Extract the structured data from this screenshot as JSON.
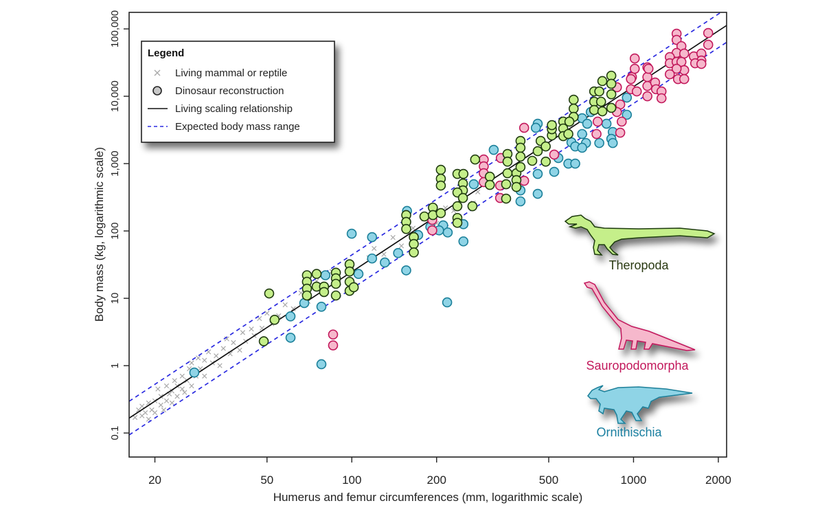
{
  "chart_data": {
    "type": "scatter",
    "xlabel": "Humerus and femur circumferences (mm, logarithmic scale)",
    "ylabel": "Body mass (kg, logarithmic scale)",
    "x_scale": "log",
    "y_scale": "log",
    "xlim": [
      16.2,
      2140
    ],
    "ylim": [
      0.044,
      176000
    ],
    "grid": false,
    "x_ticks": [
      20,
      50,
      100,
      200,
      500,
      1000,
      2000
    ],
    "x_tick_labels": [
      "20",
      "50",
      "100",
      "200",
      "500",
      "1000",
      "2000"
    ],
    "y_ticks": [
      0.1,
      1,
      10,
      100,
      1000,
      10000,
      100000
    ],
    "y_tick_labels": [
      "0.1",
      "1",
      "10",
      "100",
      "1,000",
      "10,000",
      "100,000"
    ],
    "legend": {
      "position": "top-left",
      "title": "Legend",
      "items": [
        {
          "label": "Living mammal or reptile",
          "marker": "cross"
        },
        {
          "label": "Dinosaur reconstruction",
          "marker": "circle"
        },
        {
          "label": "Living scaling relationship",
          "marker": "solid-line"
        },
        {
          "label": "Expected body mass range",
          "marker": "dashed-line"
        }
      ]
    },
    "regression": {
      "slope": 2.749,
      "intercept": -4.104,
      "band_log10": 0.25,
      "line_color": "#111111",
      "band_color": "#2a2ae0"
    },
    "living": {
      "color": "#a8a8a8",
      "points": [
        [
          17,
          0.17
        ],
        [
          17.5,
          0.22
        ],
        [
          18,
          0.18
        ],
        [
          18,
          0.25
        ],
        [
          18.5,
          0.2
        ],
        [
          19,
          0.16
        ],
        [
          19,
          0.28
        ],
        [
          19.5,
          0.22
        ],
        [
          20,
          0.3
        ],
        [
          20,
          0.2
        ],
        [
          20.5,
          0.45
        ],
        [
          21,
          0.26
        ],
        [
          21,
          0.35
        ],
        [
          21.5,
          0.22
        ],
        [
          22,
          0.3
        ],
        [
          22,
          0.5
        ],
        [
          22.5,
          0.38
        ],
        [
          23,
          0.28
        ],
        [
          23,
          0.42
        ],
        [
          23.5,
          0.6
        ],
        [
          24,
          0.35
        ],
        [
          24,
          0.5
        ],
        [
          25,
          0.45
        ],
        [
          25,
          0.7
        ],
        [
          25.5,
          0.4
        ],
        [
          26,
          0.6
        ],
        [
          26.5,
          0.9
        ],
        [
          27,
          0.5
        ],
        [
          27,
          1.1
        ],
        [
          28,
          0.7
        ],
        [
          28.5,
          1.3
        ],
        [
          29,
          0.9
        ],
        [
          30,
          1.2
        ],
        [
          30,
          0.7
        ],
        [
          31,
          1.6
        ],
        [
          32,
          1.1
        ],
        [
          33,
          1.4
        ],
        [
          34,
          1.0
        ],
        [
          35,
          1.8
        ],
        [
          36,
          2.5
        ],
        [
          37,
          1.5
        ],
        [
          38,
          2.2
        ],
        [
          40,
          1.7
        ],
        [
          41,
          3.1
        ],
        [
          42,
          2.3
        ],
        [
          44,
          3.5
        ],
        [
          45,
          2.8
        ],
        [
          47,
          5.0
        ],
        [
          48,
          3.6
        ],
        [
          50,
          6.0
        ],
        [
          52,
          4.2
        ],
        [
          55,
          5.5
        ],
        [
          58,
          8.0
        ],
        [
          62,
          7.0
        ],
        [
          66,
          12
        ],
        [
          70,
          9
        ],
        [
          75,
          18
        ],
        [
          80,
          13
        ],
        [
          85,
          25
        ],
        [
          90,
          17
        ],
        [
          100,
          30
        ],
        [
          105,
          22
        ],
        [
          115,
          40
        ],
        [
          120,
          55
        ],
        [
          130,
          45
        ],
        [
          140,
          80
        ],
        [
          150,
          60
        ],
        [
          165,
          110
        ],
        [
          180,
          150
        ],
        [
          200,
          130
        ],
        [
          215,
          220
        ],
        [
          230,
          200
        ],
        [
          250,
          300
        ],
        [
          270,
          260
        ],
        [
          280,
          380
        ]
      ]
    },
    "groups": [
      {
        "name": "Ornithischia",
        "fill": "#8fd4e6",
        "stroke": "#1a7f99",
        "label_color": "#1a7fa0",
        "points": [
          [
            27.6,
            0.79
          ],
          [
            60.6,
            5.4
          ],
          [
            60.6,
            2.6
          ],
          [
            67.8,
            8.5
          ],
          [
            78,
            7.5
          ],
          [
            78,
            1.05
          ],
          [
            80.6,
            22
          ],
          [
            105.6,
            23
          ],
          [
            99.9,
            91
          ],
          [
            118,
            81
          ],
          [
            118,
            39
          ],
          [
            131,
            34
          ],
          [
            146,
            47
          ],
          [
            156,
            26
          ],
          [
            157,
            198
          ],
          [
            172,
            87
          ],
          [
            218,
            8.7
          ],
          [
            190,
            115
          ],
          [
            211,
            121
          ],
          [
            219,
            95
          ],
          [
            204,
            102
          ],
          [
            249,
            126
          ],
          [
            249,
            70
          ],
          [
            271,
            494
          ],
          [
            319,
            1600
          ],
          [
            397,
            400
          ],
          [
            397,
            275
          ],
          [
            457,
            3910
          ],
          [
            450,
            3400
          ],
          [
            457,
            703
          ],
          [
            457,
            356
          ],
          [
            523,
            755
          ],
          [
            541,
            1210
          ],
          [
            587,
            1000
          ],
          [
            621,
            1000
          ],
          [
            602,
            2070
          ],
          [
            621,
            1800
          ],
          [
            657,
            4720
          ],
          [
            657,
            2750
          ],
          [
            678,
            2020
          ],
          [
            657,
            1720
          ],
          [
            685,
            3910
          ],
          [
            705,
            5830
          ],
          [
            756,
            2020
          ],
          [
            802,
            3910
          ],
          [
            844,
            2950
          ],
          [
            834,
            2330
          ],
          [
            844,
            2020
          ],
          [
            947,
            9550
          ],
          [
            947,
            5310
          ]
        ]
      },
      {
        "name": "Sauropodomorpha",
        "fill": "#f6b8cc",
        "stroke": "#c2185b",
        "label_color": "#c2185b",
        "points": [
          [
            85.8,
            2.9
          ],
          [
            85.8,
            2.0
          ],
          [
            193,
            146
          ],
          [
            193,
            102
          ],
          [
            294,
            1150
          ],
          [
            294,
            911
          ],
          [
            294,
            720
          ],
          [
            294,
            531
          ],
          [
            338,
            1210
          ],
          [
            336,
            472
          ],
          [
            336,
            309
          ],
          [
            409,
            556
          ],
          [
            409,
            3400
          ],
          [
            523,
            1360
          ],
          [
            746,
            4200
          ],
          [
            739,
            2750
          ],
          [
            873,
            13600
          ],
          [
            897,
            7550
          ],
          [
            873,
            5830
          ],
          [
            908,
            4200
          ],
          [
            897,
            2880
          ],
          [
            987,
            19300
          ],
          [
            979,
            12700
          ],
          [
            1010,
            25600
          ],
          [
            1010,
            36400
          ],
          [
            1120,
            26900
          ],
          [
            1120,
            19300
          ],
          [
            1120,
            14200
          ],
          [
            1120,
            10000
          ],
          [
            1193,
            16000
          ],
          [
            1202,
            12700
          ],
          [
            1257,
            11800
          ],
          [
            1257,
            9330
          ],
          [
            979,
            18000
          ],
          [
            1027,
            11800
          ],
          [
            1130,
            25600
          ],
          [
            1422,
            84900
          ],
          [
            1422,
            68700
          ],
          [
            1479,
            55500
          ],
          [
            1422,
            44000
          ],
          [
            1513,
            43000
          ],
          [
            1345,
            38200
          ],
          [
            1345,
            30900
          ],
          [
            1422,
            32400
          ],
          [
            1479,
            32400
          ],
          [
            1513,
            24400
          ],
          [
            1422,
            25600
          ],
          [
            1345,
            21200
          ],
          [
            1438,
            18000
          ],
          [
            1513,
            18000
          ],
          [
            1637,
            39100
          ],
          [
            1741,
            43000
          ],
          [
            1741,
            33900
          ],
          [
            1655,
            30900
          ],
          [
            1741,
            30200
          ],
          [
            1841,
            86900
          ],
          [
            1841,
            58200
          ]
        ]
      },
      {
        "name": "Theropoda",
        "fill": "#c5ef8a",
        "stroke": "#1f3a10",
        "label_color": "#2a3a12",
        "points": [
          [
            50.9,
            11.8
          ],
          [
            53.2,
            4.8
          ],
          [
            48.7,
            2.3
          ],
          [
            69.3,
            22
          ],
          [
            69.3,
            17.6
          ],
          [
            69.3,
            13.9
          ],
          [
            69.3,
            11.0
          ],
          [
            75,
            23
          ],
          [
            75,
            14.9
          ],
          [
            79.7,
            14.9
          ],
          [
            79.7,
            12.4
          ],
          [
            87.8,
            24
          ],
          [
            87.8,
            19.8
          ],
          [
            87.8,
            16.4
          ],
          [
            87.8,
            11.0
          ],
          [
            98.2,
            32
          ],
          [
            98.2,
            25
          ],
          [
            98.2,
            17.6
          ],
          [
            98.2,
            12.9
          ],
          [
            101.6,
            14.6
          ],
          [
            156,
            172
          ],
          [
            156,
            136
          ],
          [
            156,
            107
          ],
          [
            166,
            81
          ],
          [
            166,
            64
          ],
          [
            166,
            48
          ],
          [
            181,
            164
          ],
          [
            194,
            222
          ],
          [
            194,
            172
          ],
          [
            207,
            184
          ],
          [
            207,
            809
          ],
          [
            207,
            597
          ],
          [
            207,
            472
          ],
          [
            237,
            703
          ],
          [
            249,
            703
          ],
          [
            248,
            506
          ],
          [
            248,
            400
          ],
          [
            237,
            373
          ],
          [
            248,
            309
          ],
          [
            237,
            233
          ],
          [
            268,
            233
          ],
          [
            237,
            156
          ],
          [
            237,
            132
          ],
          [
            274,
            1150
          ],
          [
            309,
            640
          ],
          [
            309,
            483
          ],
          [
            353,
            494
          ],
          [
            353,
            302
          ],
          [
            357,
            1390
          ],
          [
            357,
            1070
          ],
          [
            357,
            720
          ],
          [
            384,
            720
          ],
          [
            384,
            569
          ],
          [
            384,
            450
          ],
          [
            397,
            2170
          ],
          [
            397,
            1720
          ],
          [
            397,
            1270
          ],
          [
            397,
            889
          ],
          [
            437,
            1100
          ],
          [
            457,
            1530
          ],
          [
            468,
            2170
          ],
          [
            488,
            1070
          ],
          [
            488,
            1800
          ],
          [
            513,
            2620
          ],
          [
            513,
            3240
          ],
          [
            513,
            3730
          ],
          [
            563,
            4200
          ],
          [
            563,
            3320
          ],
          [
            563,
            2560
          ],
          [
            587,
            2750
          ],
          [
            613,
            8890
          ],
          [
            613,
            6550
          ],
          [
            613,
            4940
          ],
          [
            592,
            4200
          ],
          [
            725,
            11800
          ],
          [
            725,
            8300
          ],
          [
            725,
            6250
          ],
          [
            756,
            11800
          ],
          [
            775,
            16800
          ],
          [
            767,
            8300
          ],
          [
            775,
            5970
          ],
          [
            834,
            20200
          ],
          [
            834,
            15300
          ],
          [
            834,
            10700
          ],
          [
            834,
            6720
          ]
        ]
      }
    ]
  }
}
